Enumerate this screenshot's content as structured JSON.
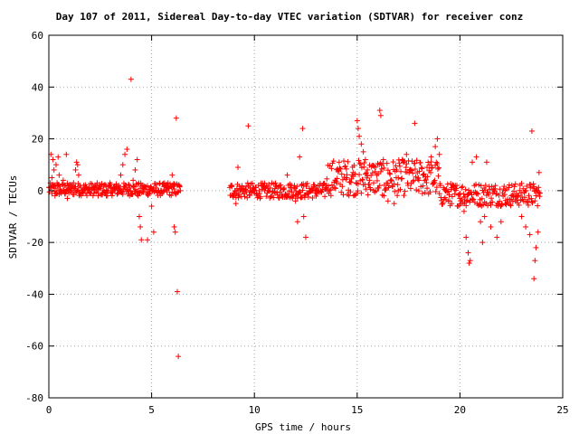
{
  "chart_data": {
    "type": "scatter",
    "title": "Day 107 of 2011, Sidereal Day-to-day VTEC variation (SDTVAR) for receiver conz",
    "xlabel": "GPS time / hours",
    "ylabel": "SDTVAR / TECUs",
    "xlim": [
      0,
      25
    ],
    "ylim": [
      -80,
      60
    ],
    "xticks": [
      "0",
      "5",
      "10",
      "15",
      "20",
      "25"
    ],
    "yticks": [
      "-80",
      "-60",
      "-40",
      "-20",
      "0",
      "20",
      "40",
      "60"
    ],
    "grid": true,
    "marker": "+",
    "color": "#ff0000",
    "series": [
      {
        "values": [
          [
            0.1,
            14
          ],
          [
            0.15,
            5
          ],
          [
            0.2,
            12
          ],
          [
            0.25,
            8
          ],
          [
            0.3,
            -2
          ],
          [
            0.35,
            10
          ],
          [
            0.4,
            3
          ],
          [
            0.45,
            13
          ],
          [
            0.5,
            6
          ],
          [
            0.55,
            0
          ],
          [
            0.6,
            -1
          ],
          [
            0.7,
            4
          ],
          [
            0.8,
            2
          ],
          [
            0.9,
            -3
          ],
          [
            1.0,
            1
          ],
          [
            0.85,
            14
          ],
          [
            1.1,
            0
          ],
          [
            1.2,
            3
          ],
          [
            1.3,
            8
          ],
          [
            1.35,
            11
          ],
          [
            1.4,
            10
          ],
          [
            1.45,
            6
          ],
          [
            1.5,
            2
          ],
          [
            1.6,
            0
          ],
          [
            1.8,
            -1
          ],
          [
            2.0,
            -1
          ],
          [
            2.2,
            -1
          ],
          [
            2.4,
            -2
          ],
          [
            2.6,
            -1
          ],
          [
            2.8,
            -2
          ],
          [
            3.0,
            -1
          ],
          [
            3.2,
            0
          ],
          [
            3.4,
            2
          ],
          [
            3.5,
            6
          ],
          [
            3.6,
            10
          ],
          [
            3.7,
            14
          ],
          [
            3.8,
            16
          ],
          [
            3.9,
            2
          ],
          [
            4.0,
            43
          ],
          [
            4.1,
            4
          ],
          [
            4.2,
            8
          ],
          [
            4.3,
            12
          ],
          [
            4.35,
            -2
          ],
          [
            4.4,
            -10
          ],
          [
            4.45,
            -14
          ],
          [
            4.5,
            -19
          ],
          [
            4.6,
            1
          ],
          [
            4.8,
            -19
          ],
          [
            4.9,
            -1
          ],
          [
            5.0,
            -6
          ],
          [
            5.1,
            -16
          ],
          [
            5.2,
            0
          ],
          [
            5.4,
            -1
          ],
          [
            5.6,
            0
          ],
          [
            5.8,
            3
          ],
          [
            6.0,
            6
          ],
          [
            6.1,
            -14
          ],
          [
            6.15,
            -16
          ],
          [
            6.2,
            28
          ],
          [
            6.25,
            -39
          ],
          [
            6.3,
            -64
          ],
          [
            6.4,
            0
          ],
          [
            8.9,
            2
          ],
          [
            9.0,
            -1
          ],
          [
            9.1,
            -5
          ],
          [
            9.2,
            0
          ],
          [
            9.5,
            -1
          ],
          [
            9.8,
            0
          ],
          [
            10.0,
            -1
          ],
          [
            9.7,
            25
          ],
          [
            9.2,
            9
          ],
          [
            10.5,
            0
          ],
          [
            11.0,
            -1
          ],
          [
            11.5,
            -2
          ],
          [
            11.6,
            6
          ],
          [
            11.8,
            2
          ],
          [
            12.0,
            -4
          ],
          [
            12.1,
            -12
          ],
          [
            12.2,
            13
          ],
          [
            12.3,
            2
          ],
          [
            12.35,
            24
          ],
          [
            12.4,
            -10
          ],
          [
            12.5,
            -18
          ],
          [
            12.8,
            0
          ],
          [
            13.0,
            1
          ],
          [
            13.5,
            1
          ],
          [
            14.0,
            3
          ],
          [
            14.5,
            5
          ],
          [
            14.8,
            7
          ],
          [
            15.0,
            27
          ],
          [
            15.05,
            24
          ],
          [
            15.1,
            21
          ],
          [
            15.2,
            18
          ],
          [
            15.3,
            15
          ],
          [
            15.4,
            12
          ],
          [
            15.5,
            8
          ],
          [
            15.6,
            4
          ],
          [
            15.8,
            3
          ],
          [
            16.0,
            1
          ],
          [
            16.1,
            31
          ],
          [
            16.15,
            29
          ],
          [
            16.3,
            -2
          ],
          [
            16.5,
            -4
          ],
          [
            16.8,
            -5
          ],
          [
            17.0,
            0
          ],
          [
            17.2,
            12
          ],
          [
            17.4,
            14
          ],
          [
            17.6,
            8
          ],
          [
            17.8,
            26
          ],
          [
            18.0,
            4
          ],
          [
            18.2,
            6
          ],
          [
            18.4,
            9
          ],
          [
            18.6,
            13
          ],
          [
            18.8,
            17
          ],
          [
            18.9,
            20
          ],
          [
            19.0,
            14
          ],
          [
            19.3,
            0
          ],
          [
            19.6,
            -5
          ],
          [
            20.0,
            -3
          ],
          [
            20.2,
            -8
          ],
          [
            20.3,
            -18
          ],
          [
            20.4,
            -24
          ],
          [
            20.45,
            -28
          ],
          [
            20.5,
            -27
          ],
          [
            20.6,
            11
          ],
          [
            20.8,
            13
          ],
          [
            21.0,
            -12
          ],
          [
            21.1,
            -20
          ],
          [
            21.2,
            -10
          ],
          [
            21.3,
            11
          ],
          [
            21.5,
            -14
          ],
          [
            21.8,
            -18
          ],
          [
            22.0,
            -12
          ],
          [
            22.2,
            -5
          ],
          [
            22.5,
            -2
          ],
          [
            22.7,
            -4
          ],
          [
            23.0,
            -10
          ],
          [
            23.2,
            -14
          ],
          [
            23.4,
            -17
          ],
          [
            23.5,
            23
          ],
          [
            23.6,
            -34
          ],
          [
            23.65,
            -27
          ],
          [
            23.7,
            -22
          ],
          [
            23.8,
            -16
          ],
          [
            23.85,
            7
          ],
          [
            23.9,
            -1
          ]
        ],
        "bands": [
          {
            "x": [
              0.0,
              6.4
            ],
            "y": [
              -2,
              3
            ]
          },
          {
            "x": [
              8.8,
              13.5
            ],
            "y": [
              -3,
              3
            ]
          },
          {
            "x": [
              13.5,
              19.0
            ],
            "y": [
              -2,
              12
            ]
          },
          {
            "x": [
              19.0,
              23.9
            ],
            "y": [
              -6,
              3
            ]
          }
        ]
      }
    ]
  }
}
